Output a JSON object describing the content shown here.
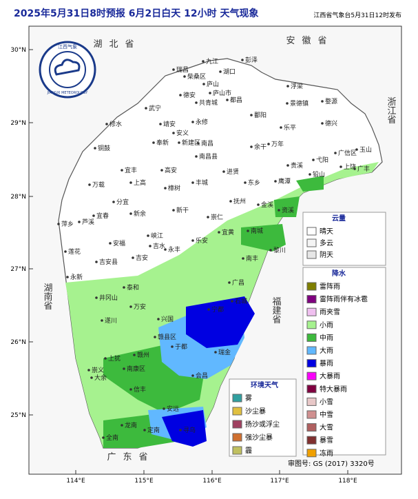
{
  "header": {
    "title": "2025年5月31日8时预报 6月2日白天 12小时  天气现象",
    "publisher": "江西省气象台5月31日12时发布"
  },
  "logo": {
    "name": "江西气象",
    "name_en": "JIANGXI METEOROLOGY"
  },
  "lon_ticks": [
    "114°E",
    "115°E",
    "116°E",
    "117°E",
    "118°E"
  ],
  "lat_ticks": [
    "30°N",
    "29°N",
    "28°N",
    "27°N",
    "26°N",
    "25°N"
  ],
  "provinces": [
    "湖北省",
    "安徽省",
    "浙江省",
    "湖南省",
    "福建省",
    "广东省"
  ],
  "cities": [
    "九江",
    "湖口",
    "彭泽",
    "瑞昌",
    "柴桑区",
    "庐山",
    "庐山市",
    "德安",
    "武宁",
    "修水",
    "共青城",
    "都昌",
    "永修",
    "靖安",
    "安义",
    "奉新",
    "新建区",
    "南昌",
    "南昌县",
    "鄱阳",
    "景德镇",
    "浮梁",
    "婺源",
    "乐平",
    "万年",
    "余干",
    "德兴",
    "进贤",
    "东乡",
    "鹰潭",
    "贵溪",
    "弋阳",
    "上饶",
    "广丰",
    "玉山",
    "广信区",
    "铅山",
    "铜鼓",
    "宜丰",
    "上高",
    "高安",
    "丰城",
    "樟树",
    "万载",
    "宜春",
    "分宜",
    "新余",
    "萍乡",
    "芦溪",
    "新干",
    "抚州",
    "崇仁",
    "金溪",
    "资溪",
    "宜黄",
    "南城",
    "黎川",
    "莲花",
    "安福",
    "峡江",
    "吉水",
    "永丰",
    "乐安",
    "南丰",
    "吉安县",
    "吉安",
    "永新",
    "泰和",
    "井冈山",
    "万安",
    "遂川",
    "兴国",
    "宁都",
    "石城",
    "广昌",
    "于都",
    "瑞金",
    "赣州",
    "赣县区",
    "上犹",
    "南康区",
    "崇义",
    "大余",
    "会昌",
    "信丰",
    "安远",
    "龙南",
    "全南",
    "定南",
    "寻乌"
  ],
  "legend_cloud": {
    "title": "云量",
    "items": [
      {
        "label": "晴天",
        "color": "#ffffff"
      },
      {
        "label": "多云",
        "color": "#f4f4f4"
      },
      {
        "label": "阴天",
        "color": "#e6e6e6"
      }
    ]
  },
  "legend_precip": {
    "title": "降水",
    "items": [
      {
        "label": "雷阵雨",
        "color": "#7f7f00"
      },
      {
        "label": "雷阵雨伴有冰雹",
        "color": "#7f007f"
      },
      {
        "label": "雨夹雪",
        "color": "#f0c0f0"
      },
      {
        "label": "小雨",
        "color": "#a6f28f"
      },
      {
        "label": "中雨",
        "color": "#3dba3d"
      },
      {
        "label": "大雨",
        "color": "#61b8ff"
      },
      {
        "label": "暴雨",
        "color": "#0000e1"
      },
      {
        "label": "大暴雨",
        "color": "#fa00fa"
      },
      {
        "label": "特大暴雨",
        "color": "#800040"
      },
      {
        "label": "小雪",
        "color": "#e8c8c8"
      },
      {
        "label": "中雪",
        "color": "#d09090"
      },
      {
        "label": "大雪",
        "color": "#b06060"
      },
      {
        "label": "暴雪",
        "color": "#803030"
      },
      {
        "label": "冻雨",
        "color": "#f0a000"
      }
    ]
  },
  "legend_env": {
    "title": "环境天气",
    "items": [
      {
        "label": "雾",
        "color": "#30a0a0"
      },
      {
        "label": "沙尘暴",
        "color": "#e0c040"
      },
      {
        "label": "扬沙或浮尘",
        "color": "#a04060"
      },
      {
        "label": "强沙尘暴",
        "color": "#d07030"
      },
      {
        "label": "霾",
        "color": "#c0c060"
      }
    ]
  },
  "review_number": "审图号: GS (2017) 3320号"
}
